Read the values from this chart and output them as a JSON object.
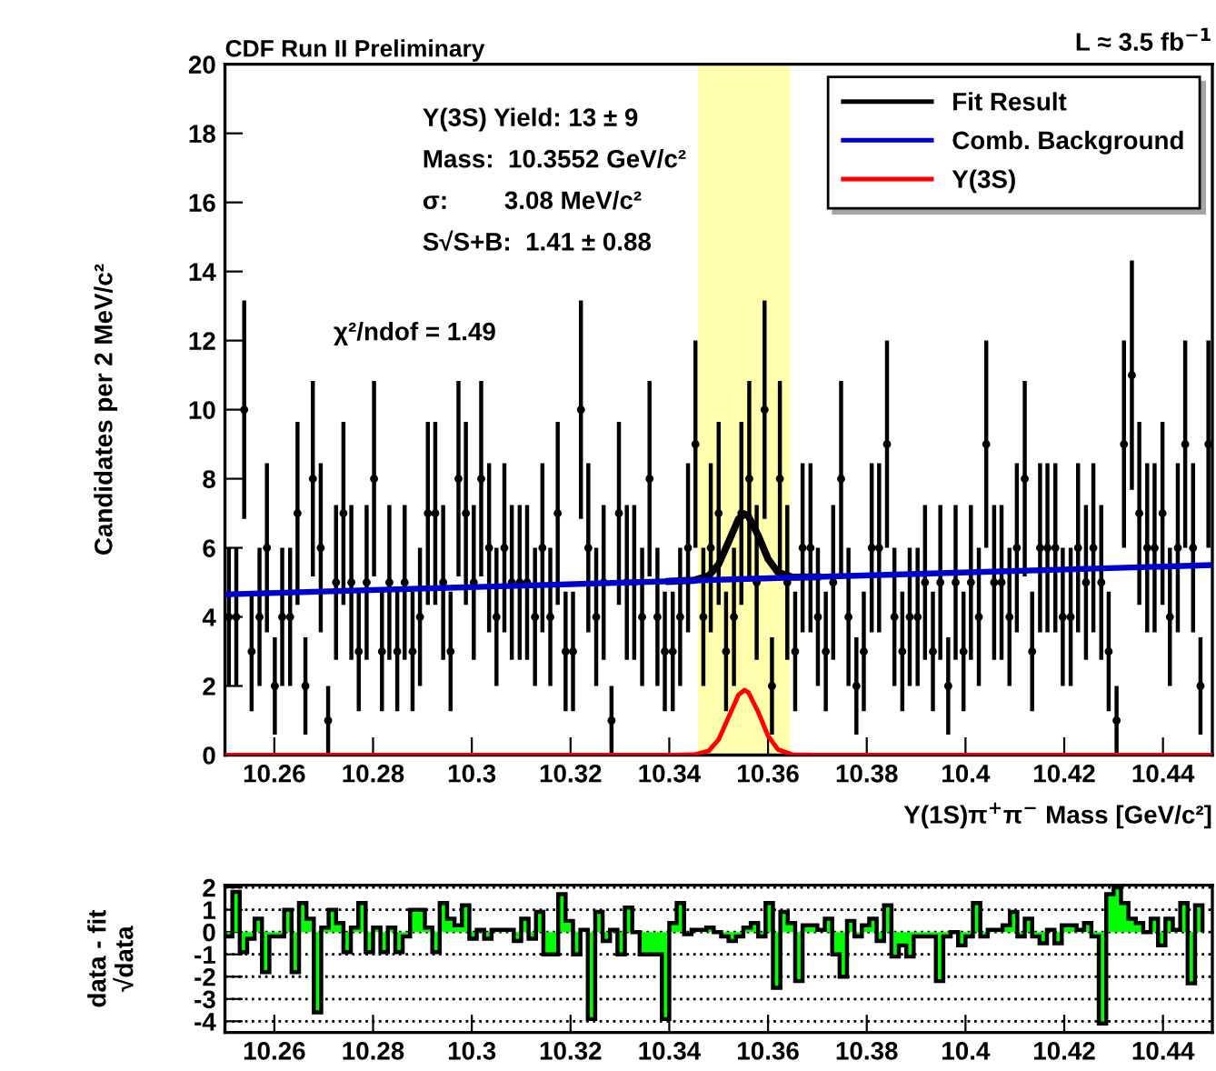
{
  "chart_data": [
    {
      "type": "scatter",
      "title": "CDF Run II Preliminary",
      "xlabel": "Υ(1S)π$^{+}$π$^{−}$ Mass [GeV/c²]",
      "ylabel": "Candidates per 2 MeV/c²",
      "annotations": [
        "Υ(3S) Yield: 13 ± 9",
        "Mass:  10.3552 GeV/c²",
        "σ:        3.08 MeV/c²",
        "S√S+B:  1.41 ± 0.88",
        "χ²/ndof = 1.49",
        "L ≈ 3.5 fb$^{−1}$"
      ],
      "xlim": [
        10.25,
        10.45
      ],
      "ylim": [
        0,
        20
      ],
      "xticks": [
        10.26,
        10.28,
        10.3,
        10.32,
        10.34,
        10.36,
        10.38,
        10.4,
        10.42,
        10.44
      ],
      "yticks": [
        0,
        2,
        4,
        6,
        8,
        10,
        12,
        14,
        16,
        18,
        20
      ],
      "legend": "top right",
      "bands": [
        {
          "axis": "x",
          "from": 10.3458,
          "to": 10.3645,
          "color": "#ffff99"
        }
      ],
      "series": [
        {
          "type": "scatter",
          "marker": "circle",
          "color": "#000000",
          "x": [
            10.2508,
            10.2523,
            10.2539,
            10.2554,
            10.257,
            10.2585,
            10.2601,
            10.2616,
            10.2632,
            10.2647,
            10.2663,
            10.2678,
            10.2694,
            10.2709,
            10.2725,
            10.274,
            10.2756,
            10.2771,
            10.2787,
            10.2802,
            10.2818,
            10.2833,
            10.2849,
            10.2864,
            10.288,
            10.2895,
            10.2911,
            10.2926,
            10.2942,
            10.2957,
            10.2973,
            10.2988,
            10.3004,
            10.3019,
            10.3035,
            10.305,
            10.3066,
            10.3081,
            10.3097,
            10.3112,
            10.3128,
            10.3143,
            10.3159,
            10.3174,
            10.319,
            10.3205,
            10.3221,
            10.3236,
            10.3252,
            10.3267,
            10.3283,
            10.3298,
            10.3314,
            10.3329,
            10.3345,
            10.336,
            10.3376,
            10.3391,
            10.3407,
            10.3422,
            10.3438,
            10.3453,
            10.3469,
            10.3484,
            10.35,
            10.3515,
            10.3531,
            10.3546,
            10.3562,
            10.3577,
            10.3593,
            10.3608,
            10.3624,
            10.3639,
            10.3655,
            10.367,
            10.3686,
            10.3701,
            10.3717,
            10.3732,
            10.3748,
            10.3763,
            10.3779,
            10.3794,
            10.381,
            10.3825,
            10.3841,
            10.3856,
            10.3872,
            10.3887,
            10.3903,
            10.3918,
            10.3934,
            10.3949,
            10.3965,
            10.398,
            10.3996,
            10.4011,
            10.4027,
            10.4042,
            10.4058,
            10.4073,
            10.4089,
            10.4104,
            10.412,
            10.4135,
            10.4151,
            10.4166,
            10.4182,
            10.4197,
            10.4213,
            10.4228,
            10.4244,
            10.4259,
            10.4275,
            10.429,
            10.4306,
            10.4321,
            10.4337,
            10.4352,
            10.4368,
            10.4383,
            10.4399,
            10.4414,
            10.443,
            10.4445,
            10.4461,
            10.4476,
            10.4492
          ],
          "values": [
            4,
            4,
            10,
            3,
            4,
            6,
            2,
            4,
            4,
            7,
            2,
            8,
            6,
            1,
            5,
            7,
            5,
            3,
            5,
            8,
            3,
            5,
            3,
            5,
            3,
            4,
            7,
            7,
            5,
            3,
            8,
            7,
            5,
            8,
            6,
            4,
            6,
            5,
            5,
            5,
            4,
            6,
            4,
            7,
            3,
            3,
            10,
            6,
            4,
            5,
            1,
            7,
            5,
            5,
            4,
            8,
            4,
            3,
            3,
            4,
            6,
            9,
            4,
            6,
            7,
            3,
            4,
            7,
            8,
            5,
            10,
            2,
            8,
            5,
            3,
            6,
            6,
            4,
            3,
            5,
            8,
            4,
            2,
            3,
            6,
            6,
            9,
            4,
            3,
            4,
            4,
            5,
            3,
            5,
            2,
            5,
            3,
            5,
            4,
            9,
            5,
            5,
            4,
            6,
            8,
            3,
            6,
            6,
            6,
            4,
            4,
            6,
            5,
            6,
            5,
            3,
            1,
            9,
            11,
            7,
            6,
            6,
            7,
            4,
            6,
            9,
            6,
            2,
            9
          ],
          "errors": [
            2,
            2,
            3.16,
            1.73,
            2,
            2.45,
            1.41,
            2,
            2,
            2.65,
            1.41,
            2.83,
            2.45,
            1,
            2.24,
            2.65,
            2.24,
            1.73,
            2.24,
            2.83,
            1.73,
            2.24,
            1.73,
            2.24,
            1.73,
            2,
            2.65,
            2.65,
            2.24,
            1.73,
            2.83,
            2.65,
            2.24,
            2.83,
            2.45,
            2,
            2.45,
            2.24,
            2.24,
            2.24,
            2,
            2.45,
            2,
            2.65,
            1.73,
            1.73,
            3.16,
            2.45,
            2,
            2.24,
            1,
            2.65,
            2.24,
            2.24,
            2,
            2.83,
            2,
            1.73,
            1.73,
            2,
            2.45,
            3,
            2,
            2.45,
            2.65,
            1.73,
            2,
            2.65,
            2.83,
            2.24,
            3.16,
            1.41,
            2.83,
            2.24,
            1.73,
            2.45,
            2.45,
            2,
            1.73,
            2.24,
            2.83,
            2,
            1.41,
            1.73,
            2.45,
            2.45,
            3,
            2,
            1.73,
            2,
            2,
            2.24,
            1.73,
            2.24,
            1.41,
            2.24,
            1.73,
            2.24,
            2,
            3,
            2.24,
            2.24,
            2,
            2.45,
            2.83,
            1.73,
            2.45,
            2.45,
            2.45,
            2,
            2,
            2.45,
            2.24,
            2.45,
            2.24,
            1.73,
            1,
            3,
            3.32,
            2.65,
            2.45,
            2.45,
            2.65,
            2,
            2.45,
            3,
            2.45,
            1.41,
            3
          ]
        },
        {
          "type": "line",
          "name": "Fit Result",
          "color": "#000000",
          "x": [
            10.34,
            10.345,
            10.348,
            10.35,
            10.352,
            10.354,
            10.3552,
            10.356,
            10.358,
            10.36,
            10.362,
            10.365,
            10.37
          ],
          "values": [
            5.03,
            5.06,
            5.19,
            5.52,
            6.17,
            6.83,
            6.98,
            6.92,
            6.36,
            5.68,
            5.29,
            5.15,
            5.16
          ]
        },
        {
          "type": "line",
          "name": "Comb. Background",
          "color": "#0000cc",
          "x": [
            10.25,
            10.45
          ],
          "values": [
            4.65,
            5.5
          ]
        },
        {
          "type": "line",
          "name": "Υ(3S)",
          "color": "#ff0000",
          "x": [
            10.25,
            10.34,
            10.345,
            10.348,
            10.35,
            10.352,
            10.354,
            10.3552,
            10.356,
            10.358,
            10.36,
            10.362,
            10.365,
            10.37,
            10.45
          ],
          "values": [
            0,
            0,
            0.01,
            0.12,
            0.45,
            1.09,
            1.74,
            1.88,
            1.82,
            1.25,
            0.56,
            0.16,
            0.01,
            0,
            0
          ]
        }
      ]
    },
    {
      "type": "histogram",
      "ylabel": "data - fit\n√data",
      "color": "#00ff00",
      "grid": "y",
      "xlim": [
        10.25,
        10.45
      ],
      "ylim": [
        -4.5,
        2.1
      ],
      "xticks": [
        10.26,
        10.28,
        10.3,
        10.32,
        10.34,
        10.36,
        10.38,
        10.4,
        10.42,
        10.44
      ],
      "yticks": [
        -4,
        -3,
        -2,
        -1,
        0,
        1,
        2
      ],
      "bins": [
        10.25,
        10.2515,
        10.253,
        10.2545,
        10.256,
        10.2575,
        10.259,
        10.2605,
        10.262,
        10.2635,
        10.265,
        10.2665,
        10.268,
        10.2695,
        10.271,
        10.2725,
        10.274,
        10.2755,
        10.277,
        10.2785,
        10.28,
        10.2815,
        10.283,
        10.2845,
        10.286,
        10.2875,
        10.289,
        10.2905,
        10.292,
        10.2935,
        10.295,
        10.2965,
        10.298,
        10.2995,
        10.301,
        10.3025,
        10.304,
        10.3055,
        10.307,
        10.3085,
        10.31,
        10.3115,
        10.313,
        10.3145,
        10.316,
        10.3175,
        10.319,
        10.3205,
        10.322,
        10.3235,
        10.325,
        10.3265,
        10.328,
        10.3295,
        10.331,
        10.3325,
        10.334,
        10.3355,
        10.337,
        10.3385,
        10.34,
        10.3415,
        10.343,
        10.3445,
        10.346,
        10.3475,
        10.349,
        10.3505,
        10.352,
        10.3535,
        10.355,
        10.3565,
        10.358,
        10.3595,
        10.361,
        10.3625,
        10.364,
        10.3655,
        10.367,
        10.3685,
        10.37,
        10.3715,
        10.373,
        10.3745,
        10.376,
        10.3775,
        10.379,
        10.3805,
        10.382,
        10.3835,
        10.385,
        10.3865,
        10.388,
        10.3895,
        10.391,
        10.3925,
        10.394,
        10.3955,
        10.397,
        10.3985,
        10.4,
        10.4015,
        10.403,
        10.4045,
        10.406,
        10.4075,
        10.409,
        10.4105,
        10.412,
        10.4135,
        10.415,
        10.4165,
        10.418,
        10.4195,
        10.421,
        10.4225,
        10.424,
        10.4255,
        10.427,
        10.4285,
        10.43,
        10.4315,
        10.433,
        10.4345,
        10.436,
        10.4375,
        10.439,
        10.4405,
        10.442,
        10.4435,
        10.445,
        10.4465,
        10.448
      ],
      "values": [
        -0.2,
        1.8,
        -0.9,
        -0.3,
        0.6,
        -1.8,
        -0.2,
        -0.2,
        1.0,
        -1.8,
        1.3,
        0.6,
        -3.6,
        0.2,
        1.0,
        0.4,
        -0.9,
        0.2,
        1.3,
        -0.9,
        0.2,
        -0.9,
        0.2,
        -0.9,
        -0.2,
        1.0,
        1.0,
        0.2,
        -0.9,
        1.3,
        0.6,
        0.3,
        1.2,
        -0.3,
        0.1,
        -0.3,
        0.1,
        0.1,
        0.1,
        -0.4,
        0.6,
        -0.3,
        0.9,
        -1.0,
        -1.0,
        1.7,
        0.5,
        -1.0,
        0.1,
        -3.9,
        0.9,
        -0.4,
        0.1,
        -1.0,
        1.1,
        0.0,
        -1.0,
        -1.0,
        -1.0,
        -3.9,
        0.4,
        1.3,
        -0.1,
        0.1,
        0.1,
        0.2,
        0.0,
        -0.2,
        -0.4,
        -0.2,
        0.2,
        0.4,
        -0.2,
        1.3,
        -2.5,
        0.9,
        0.4,
        -2.2,
        0.3,
        0.3,
        0.1,
        0.6,
        -1.0,
        -2.0,
        0.5,
        -0.2,
        0.3,
        0.6,
        -0.4,
        1.2,
        -1.1,
        -0.6,
        -1.1,
        -0.2,
        -0.2,
        -0.2,
        -2.2,
        -0.2,
        0.0,
        -0.6,
        -0.2,
        1.3,
        -0.2,
        0.1,
        0.1,
        0.3,
        0.9,
        -0.2,
        0.6,
        -0.2,
        -0.5,
        0.1,
        -0.5,
        0.3,
        0.3,
        0.1,
        0.4,
        -0.2,
        -4.1,
        1.7,
        2.0,
        1.3,
        0.6,
        0.4,
        0.0,
        0.6,
        -0.6,
        0.6,
        0.1,
        1.3,
        -2.3,
        1.2
      ]
    }
  ]
}
